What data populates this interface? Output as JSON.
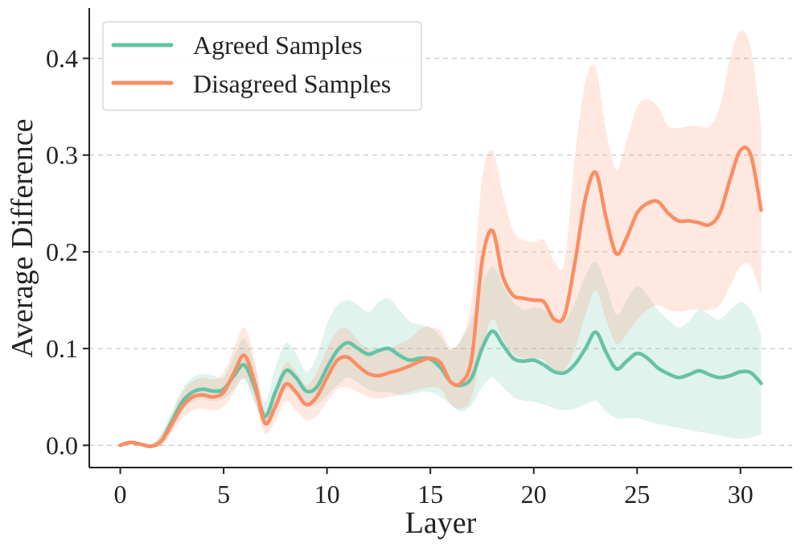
{
  "chart_data": {
    "type": "line",
    "xlabel": "Layer",
    "ylabel": "Average Difference",
    "xlim": [
      -1.5,
      32.5
    ],
    "ylim": [
      -0.023,
      0.452
    ],
    "xticks": [
      0,
      5,
      10,
      15,
      20,
      25,
      30
    ],
    "xtick_labels": [
      "0",
      "5",
      "10",
      "15",
      "20",
      "25",
      "30"
    ],
    "yticks": [
      0.0,
      0.1,
      0.2,
      0.3,
      0.4
    ],
    "ytick_labels": [
      "0.0",
      "0.1",
      "0.2",
      "0.3",
      "0.4"
    ],
    "grid": "y-dashed",
    "legend_position": "top-left",
    "x": [
      0,
      0.5,
      1,
      1.5,
      2,
      2.5,
      3,
      3.5,
      4,
      4.5,
      5,
      5.5,
      6,
      6.5,
      7,
      7.5,
      8,
      8.5,
      9,
      9.5,
      10,
      10.5,
      11,
      11.5,
      12,
      12.5,
      13,
      13.5,
      14,
      14.5,
      15,
      15.5,
      16,
      16.5,
      17,
      17.5,
      18,
      18.5,
      19,
      19.5,
      20,
      20.5,
      21,
      21.5,
      22,
      22.5,
      23,
      23.5,
      24,
      24.5,
      25,
      25.5,
      26,
      26.5,
      27,
      27.5,
      28,
      28.5,
      29,
      29.5,
      30,
      30.5,
      31
    ],
    "series": [
      {
        "name": "Agreed Samples",
        "color": "#66c2a5",
        "fill_color": "#66c2a5",
        "fill_opacity": 0.2,
        "values": [
          0.0,
          0.003,
          0.001,
          -0.001,
          0.005,
          0.025,
          0.045,
          0.055,
          0.058,
          0.056,
          0.058,
          0.072,
          0.083,
          0.06,
          0.03,
          0.055,
          0.077,
          0.07,
          0.056,
          0.06,
          0.08,
          0.098,
          0.106,
          0.1,
          0.094,
          0.098,
          0.1,
          0.093,
          0.088,
          0.09,
          0.089,
          0.08,
          0.065,
          0.062,
          0.07,
          0.1,
          0.118,
          0.104,
          0.09,
          0.087,
          0.088,
          0.083,
          0.076,
          0.075,
          0.084,
          0.1,
          0.117,
          0.096,
          0.079,
          0.087,
          0.095,
          0.09,
          0.08,
          0.074,
          0.07,
          0.073,
          0.077,
          0.073,
          0.07,
          0.072,
          0.076,
          0.075,
          0.064
        ],
        "upper": [
          0.0,
          0.004,
          0.003,
          0.001,
          0.012,
          0.035,
          0.058,
          0.07,
          0.074,
          0.072,
          0.07,
          0.092,
          0.11,
          0.082,
          0.045,
          0.08,
          0.106,
          0.095,
          0.076,
          0.092,
          0.125,
          0.145,
          0.15,
          0.145,
          0.138,
          0.148,
          0.152,
          0.14,
          0.128,
          0.125,
          0.122,
          0.112,
          0.098,
          0.11,
          0.13,
          0.165,
          0.185,
          0.165,
          0.148,
          0.14,
          0.142,
          0.14,
          0.13,
          0.128,
          0.148,
          0.175,
          0.19,
          0.165,
          0.135,
          0.15,
          0.165,
          0.155,
          0.14,
          0.13,
          0.122,
          0.128,
          0.14,
          0.135,
          0.13,
          0.14,
          0.148,
          0.14,
          0.115
        ],
        "lower": [
          0.0,
          0.002,
          -0.001,
          -0.002,
          0.0,
          0.015,
          0.035,
          0.045,
          0.048,
          0.046,
          0.048,
          0.058,
          0.068,
          0.045,
          0.02,
          0.04,
          0.058,
          0.052,
          0.042,
          0.042,
          0.052,
          0.062,
          0.07,
          0.065,
          0.058,
          0.055,
          0.055,
          0.052,
          0.052,
          0.055,
          0.055,
          0.05,
          0.042,
          0.035,
          0.042,
          0.06,
          0.07,
          0.06,
          0.05,
          0.046,
          0.045,
          0.042,
          0.038,
          0.036,
          0.038,
          0.042,
          0.046,
          0.035,
          0.028,
          0.028,
          0.028,
          0.025,
          0.022,
          0.02,
          0.018,
          0.016,
          0.014,
          0.012,
          0.01,
          0.008,
          0.007,
          0.008,
          0.012
        ]
      },
      {
        "name": "Disagreed Samples",
        "color": "#fc8d62",
        "fill_color": "#fc8d62",
        "fill_opacity": 0.2,
        "values": [
          0.0,
          0.003,
          0.001,
          -0.001,
          0.005,
          0.022,
          0.04,
          0.05,
          0.052,
          0.05,
          0.055,
          0.075,
          0.093,
          0.065,
          0.023,
          0.04,
          0.063,
          0.055,
          0.042,
          0.05,
          0.07,
          0.088,
          0.091,
          0.082,
          0.074,
          0.072,
          0.075,
          0.078,
          0.082,
          0.087,
          0.09,
          0.085,
          0.065,
          0.065,
          0.09,
          0.19,
          0.222,
          0.175,
          0.155,
          0.152,
          0.15,
          0.148,
          0.13,
          0.135,
          0.19,
          0.255,
          0.282,
          0.235,
          0.198,
          0.215,
          0.24,
          0.25,
          0.252,
          0.24,
          0.232,
          0.232,
          0.23,
          0.228,
          0.24,
          0.275,
          0.305,
          0.3,
          0.243
        ],
        "upper": [
          0.0,
          0.004,
          0.002,
          0.0,
          0.012,
          0.032,
          0.055,
          0.066,
          0.07,
          0.068,
          0.075,
          0.1,
          0.122,
          0.088,
          0.035,
          0.058,
          0.085,
          0.076,
          0.062,
          0.075,
          0.1,
          0.118,
          0.12,
          0.108,
          0.1,
          0.098,
          0.1,
          0.105,
          0.11,
          0.12,
          0.122,
          0.118,
          0.1,
          0.11,
          0.15,
          0.275,
          0.305,
          0.26,
          0.222,
          0.212,
          0.21,
          0.212,
          0.19,
          0.19,
          0.3,
          0.375,
          0.39,
          0.325,
          0.285,
          0.315,
          0.35,
          0.358,
          0.35,
          0.33,
          0.328,
          0.33,
          0.33,
          0.33,
          0.35,
          0.4,
          0.428,
          0.41,
          0.33
        ],
        "lower": [
          0.0,
          0.002,
          0.0,
          -0.002,
          0.0,
          0.014,
          0.028,
          0.036,
          0.038,
          0.036,
          0.04,
          0.055,
          0.07,
          0.045,
          0.012,
          0.025,
          0.045,
          0.036,
          0.026,
          0.03,
          0.045,
          0.058,
          0.06,
          0.055,
          0.05,
          0.048,
          0.05,
          0.052,
          0.055,
          0.058,
          0.06,
          0.058,
          0.042,
          0.038,
          0.05,
          0.1,
          0.13,
          0.11,
          0.095,
          0.09,
          0.09,
          0.088,
          0.075,
          0.078,
          0.1,
          0.135,
          0.16,
          0.13,
          0.105,
          0.115,
          0.13,
          0.14,
          0.145,
          0.14,
          0.138,
          0.14,
          0.14,
          0.14,
          0.145,
          0.165,
          0.185,
          0.185,
          0.155
        ]
      }
    ]
  }
}
